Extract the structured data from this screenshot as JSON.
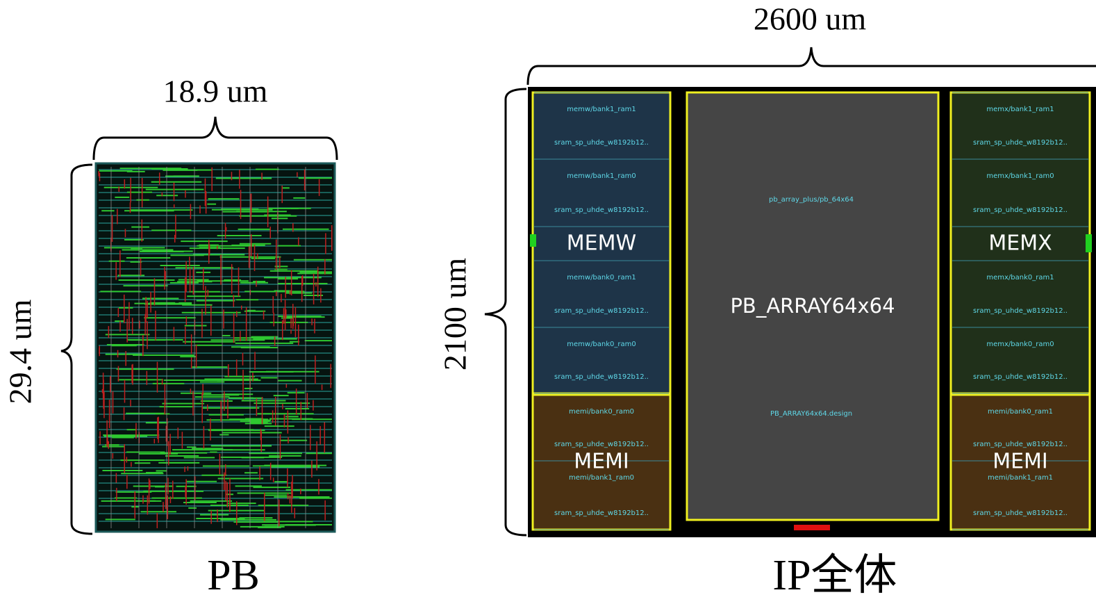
{
  "pb_layout": {
    "width_label": "18.9 um",
    "height_label": "29.4 um",
    "caption": "PB"
  },
  "ip_layout": {
    "width_label": "2600 um",
    "height_label": "2100 um",
    "caption": "IP全体",
    "center": {
      "label": "PB_ARRAY64x64",
      "instance": "pb_array_plus/pb_64x64",
      "design": "PB_ARRAY64x64.design"
    },
    "columns": [
      {
        "groups": [
          {
            "label": "MEMW",
            "cells": [
              {
                "instance": "memw/bank1_ram1",
                "master": "sram_sp_uhde_w8192b12.."
              },
              {
                "instance": "memw/bank1_ram0",
                "master": "sram_sp_uhde_w8192b12.."
              },
              {
                "instance": "memw/bank0_ram1",
                "master": "sram_sp_uhde_w8192b12.."
              },
              {
                "instance": "memw/bank0_ram0",
                "master": "sram_sp_uhde_w8192b12.."
              }
            ]
          },
          {
            "label": "MEMI",
            "cells": [
              {
                "instance": "memi/bank0_ram0",
                "master": "sram_sp_uhde_w8192b12.."
              },
              {
                "instance": "memi/bank1_ram0",
                "master": "sram_sp_uhde_w8192b12.."
              }
            ]
          }
        ]
      },
      {
        "groups": [
          {
            "label": "MEMX",
            "cells": [
              {
                "instance": "memx/bank1_ram1",
                "master": "sram_sp_uhde_w8192b12.."
              },
              {
                "instance": "memx/bank1_ram0",
                "master": "sram_sp_uhde_w8192b12.."
              },
              {
                "instance": "memx/bank0_ram1",
                "master": "sram_sp_uhde_w8192b12.."
              },
              {
                "instance": "memx/bank0_ram0",
                "master": "sram_sp_uhde_w8192b12.."
              }
            ]
          },
          {
            "label": "MEMI",
            "cells": [
              {
                "instance": "memi/bank0_ram1",
                "master": "sram_sp_uhde_w8192b12.."
              },
              {
                "instance": "memi/bank1_ram1",
                "master": "sram_sp_uhde_w8192b12.."
              }
            ]
          }
        ]
      }
    ]
  }
}
